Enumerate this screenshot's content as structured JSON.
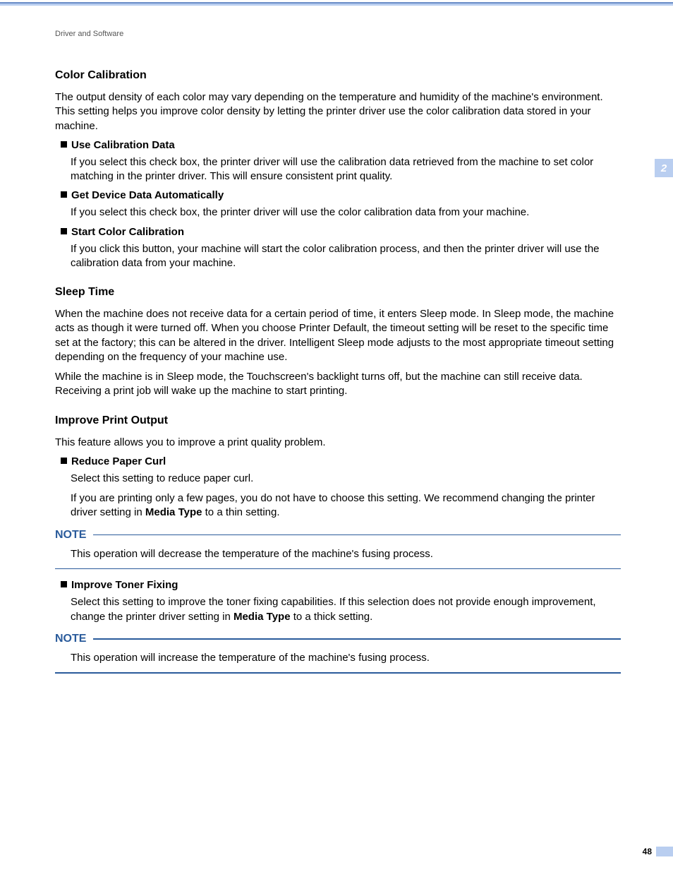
{
  "colors": {
    "header_bg": "#b9cef0",
    "header_rule": "#6a8cc7",
    "note_accent": "#2a5b9b",
    "text": "#000000",
    "breadcrumb": "#555555"
  },
  "breadcrumb": "Driver and Software",
  "side_tab": "2",
  "page_number": "48",
  "sections": {
    "color_calibration": {
      "heading": "Color Calibration",
      "intro": "The output density of each color may vary depending on the temperature and humidity of the machine's environment. This setting helps you improve color density by letting the printer driver use the color calibration data stored in your machine.",
      "items": [
        {
          "title": "Use Calibration Data",
          "body": "If you select this check box, the printer driver will use the calibration data retrieved from the machine to set color matching in the printer driver. This will ensure consistent print quality."
        },
        {
          "title": "Get Device Data Automatically",
          "body": "If you select this check box, the printer driver will use the color calibration data from your machine."
        },
        {
          "title": "Start Color Calibration",
          "body": "If you click this button, your machine will start the color calibration process, and then the printer driver will use the calibration data from your machine."
        }
      ]
    },
    "sleep_time": {
      "heading": "Sleep Time",
      "p1": "When the machine does not receive data for a certain period of time, it enters Sleep mode. In Sleep mode, the machine acts as though it were turned off. When you choose Printer Default, the timeout setting will be reset to the specific time set at the factory; this can be altered in the driver. Intelligent Sleep mode adjusts to the most appropriate timeout setting depending on the frequency of your machine use.",
      "p2": "While the machine is in Sleep mode, the Touchscreen's backlight turns off, but the machine can still receive data. Receiving a print job will wake up the machine to start printing."
    },
    "improve_print": {
      "heading": "Improve Print Output",
      "intro": "This feature allows you to improve a print quality problem.",
      "item1": {
        "title": "Reduce Paper Curl",
        "body1": "Select this setting to reduce paper curl.",
        "body2_pre": "If you are printing only a few pages, you do not have to choose this setting. We recommend changing the printer driver setting in ",
        "body2_bold": "Media Type",
        "body2_post": " to a thin setting."
      },
      "item2": {
        "title": "Improve Toner Fixing",
        "body_pre": "Select this setting to improve the toner fixing capabilities. If this selection does not provide enough improvement, change the printer driver setting in ",
        "body_bold": "Media Type",
        "body_post": " to a thick setting."
      }
    },
    "notes": {
      "label": "NOTE",
      "note1": "This operation will decrease the temperature of the machine's fusing process.",
      "note2": "This operation will increase the temperature of the machine's fusing process."
    }
  }
}
